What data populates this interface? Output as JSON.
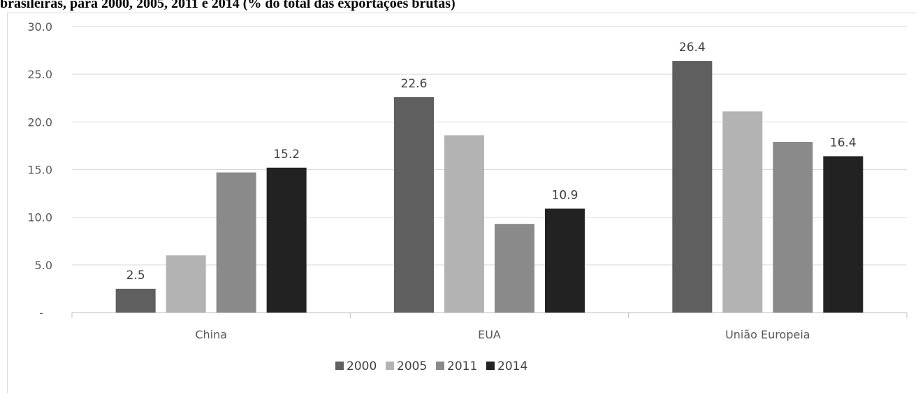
{
  "caption": "brasileiras, para 2000, 2005, 2011 e 2014 (% do total das exportações brutas)",
  "chart_data": {
    "type": "bar",
    "categories": [
      "China",
      "EUA",
      "União Europeia"
    ],
    "series": [
      {
        "name": "2000",
        "values": [
          2.5,
          22.6,
          26.4
        ],
        "color": "#5f5f5f"
      },
      {
        "name": "2005",
        "values": [
          6.0,
          18.6,
          21.1
        ],
        "color": "#b3b3b3"
      },
      {
        "name": "2011",
        "values": [
          14.7,
          9.3,
          17.9
        ],
        "color": "#8a8a8a"
      },
      {
        "name": "2014",
        "values": [
          15.2,
          10.9,
          16.4
        ],
        "color": "#222222"
      }
    ],
    "data_labels": [
      {
        "series": "2000",
        "category": "China",
        "text": "2.5"
      },
      {
        "series": "2014",
        "category": "China",
        "text": "15.2"
      },
      {
        "series": "2000",
        "category": "EUA",
        "text": "22.6"
      },
      {
        "series": "2014",
        "category": "EUA",
        "text": "10.9"
      },
      {
        "series": "2000",
        "category": "União Europeia",
        "text": "26.4"
      },
      {
        "series": "2014",
        "category": "União Europeia",
        "text": "16.4"
      }
    ],
    "y_ticks": [
      {
        "value": 0,
        "label": "-"
      },
      {
        "value": 5,
        "label": "5.0"
      },
      {
        "value": 10,
        "label": "10.0"
      },
      {
        "value": 15,
        "label": "15.0"
      },
      {
        "value": 20,
        "label": "20.0"
      },
      {
        "value": 25,
        "label": "25.0"
      },
      {
        "value": 30,
        "label": "30.0"
      }
    ],
    "ylim": [
      0,
      30
    ],
    "grid": true,
    "legend_position": "bottom"
  }
}
